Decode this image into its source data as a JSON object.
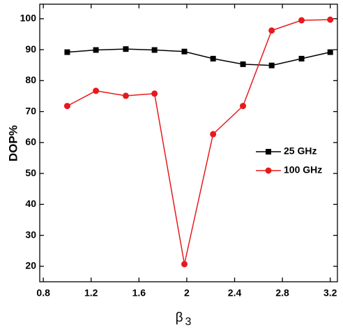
{
  "chart_data": {
    "type": "line",
    "x_label": "β",
    "x_label_subscript": "3",
    "y_label": "DOP%",
    "x": [
      1.0,
      1.24,
      1.49,
      1.73,
      1.98,
      2.22,
      2.47,
      2.71,
      2.96,
      3.2
    ],
    "series": [
      {
        "name": "25 GHz",
        "color": "#000000",
        "marker": "square",
        "values": [
          89.2,
          89.9,
          90.2,
          89.9,
          89.4,
          87.1,
          85.3,
          84.9,
          87.1,
          89.2
        ]
      },
      {
        "name": "100 GHz",
        "color": "#e8191c",
        "marker": "circle",
        "values": [
          71.8,
          76.7,
          75.1,
          75.8,
          20.7,
          62.7,
          71.8,
          96.2,
          99.5,
          99.7
        ]
      }
    ],
    "xlim": [
      0.77,
      3.26
    ],
    "xticks": [
      0.8,
      1.2,
      1.6,
      2.0,
      2.4,
      2.8,
      3.2
    ],
    "ylim": [
      15,
      104.7
    ],
    "yticks": [
      20,
      30,
      40,
      50,
      60,
      70,
      80,
      90,
      100
    ],
    "legend": "right"
  }
}
